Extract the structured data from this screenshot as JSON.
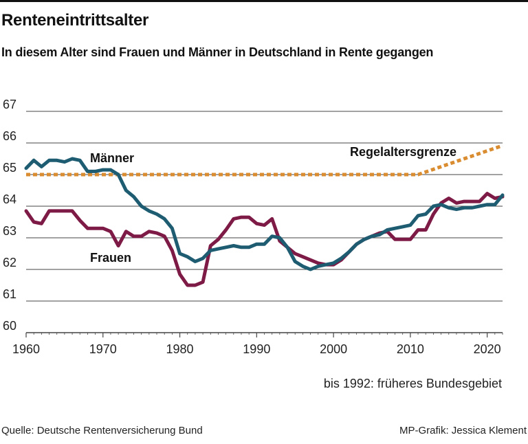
{
  "title": "Renteneintrittsalter",
  "subtitle": "In diesem Alter sind Frauen und Männer in Deutschland in Rente gegangen",
  "note": "bis 1992: früheres Bundesgebiet",
  "source": "Quelle: Deutsche Rentenversicherung Bund",
  "credit": "MP-Grafik: Jessica Klement",
  "colors": {
    "maenner": "#1e5c72",
    "frauen": "#7d1a45",
    "regel": "#d98c30",
    "grid": "#444444"
  },
  "chart_data": {
    "type": "line",
    "title": "Renteneintrittsalter",
    "xlabel": "",
    "ylabel": "",
    "xlim": [
      1960,
      2022
    ],
    "ylim": [
      60,
      67
    ],
    "xticks": [
      1960,
      1970,
      1980,
      1990,
      2000,
      2010,
      2020
    ],
    "yticks": [
      60,
      61,
      62,
      63,
      64,
      65,
      66,
      67
    ],
    "series": [
      {
        "name": "Männer",
        "key": "maenner",
        "style": "solid",
        "x": [
          1960,
          1961,
          1962,
          1963,
          1964,
          1965,
          1966,
          1967,
          1968,
          1969,
          1970,
          1971,
          1972,
          1973,
          1974,
          1975,
          1976,
          1977,
          1978,
          1979,
          1980,
          1981,
          1982,
          1983,
          1984,
          1985,
          1986,
          1987,
          1988,
          1989,
          1990,
          1991,
          1992,
          1993,
          1994,
          1995,
          1996,
          1997,
          1998,
          1999,
          2000,
          2001,
          2002,
          2003,
          2004,
          2005,
          2006,
          2007,
          2008,
          2009,
          2010,
          2011,
          2012,
          2013,
          2014,
          2015,
          2016,
          2017,
          2018,
          2019,
          2020,
          2021,
          2022
        ],
        "values": [
          65.2,
          65.45,
          65.25,
          65.45,
          65.45,
          65.4,
          65.5,
          65.45,
          65.1,
          65.1,
          65.15,
          65.15,
          65.0,
          64.5,
          64.3,
          64.0,
          63.85,
          63.75,
          63.6,
          63.3,
          62.5,
          62.4,
          62.25,
          62.35,
          62.6,
          62.65,
          62.7,
          62.75,
          62.7,
          62.7,
          62.8,
          62.8,
          63.05,
          63.0,
          62.7,
          62.25,
          62.1,
          62.0,
          62.1,
          62.15,
          62.2,
          62.35,
          62.55,
          62.8,
          62.95,
          63.05,
          63.1,
          63.25,
          63.3,
          63.35,
          63.4,
          63.7,
          63.75,
          64.0,
          64.05,
          63.95,
          63.9,
          63.95,
          63.95,
          64.0,
          64.05,
          64.05,
          64.35
        ]
      },
      {
        "name": "Frauen",
        "key": "frauen",
        "style": "solid",
        "x": [
          1960,
          1961,
          1962,
          1963,
          1964,
          1965,
          1966,
          1967,
          1968,
          1969,
          1970,
          1971,
          1972,
          1973,
          1974,
          1975,
          1976,
          1977,
          1978,
          1979,
          1980,
          1981,
          1982,
          1983,
          1984,
          1985,
          1986,
          1987,
          1988,
          1989,
          1990,
          1991,
          1992,
          1993,
          1994,
          1995,
          1996,
          1997,
          1998,
          1999,
          2000,
          2001,
          2002,
          2003,
          2004,
          2005,
          2006,
          2007,
          2008,
          2009,
          2010,
          2011,
          2012,
          2013,
          2014,
          2015,
          2016,
          2017,
          2018,
          2019,
          2020,
          2021,
          2022
        ],
        "values": [
          63.85,
          63.5,
          63.45,
          63.85,
          63.85,
          63.85,
          63.85,
          63.55,
          63.3,
          63.3,
          63.3,
          63.2,
          62.75,
          63.2,
          63.05,
          63.05,
          63.2,
          63.15,
          63.05,
          62.6,
          61.85,
          61.5,
          61.5,
          61.6,
          62.75,
          62.95,
          63.25,
          63.6,
          63.65,
          63.65,
          63.45,
          63.4,
          63.6,
          62.9,
          62.7,
          62.5,
          62.4,
          62.3,
          62.2,
          62.15,
          62.15,
          62.3,
          62.55,
          62.8,
          62.95,
          63.05,
          63.15,
          63.2,
          62.95,
          62.95,
          62.95,
          63.25,
          63.25,
          63.75,
          64.1,
          64.25,
          64.1,
          64.15,
          64.15,
          64.15,
          64.4,
          64.25,
          64.3
        ]
      },
      {
        "name": "Regelaltersgrenze",
        "key": "regel",
        "style": "dotted",
        "x": [
          1960,
          2011,
          2022
        ],
        "values": [
          65.0,
          65.0,
          65.917
        ]
      }
    ],
    "annotations": [
      {
        "text": "Männer",
        "series": "maenner"
      },
      {
        "text": "Frauen",
        "series": "frauen"
      },
      {
        "text": "Regelaltersgrenze",
        "series": "regel"
      }
    ]
  }
}
